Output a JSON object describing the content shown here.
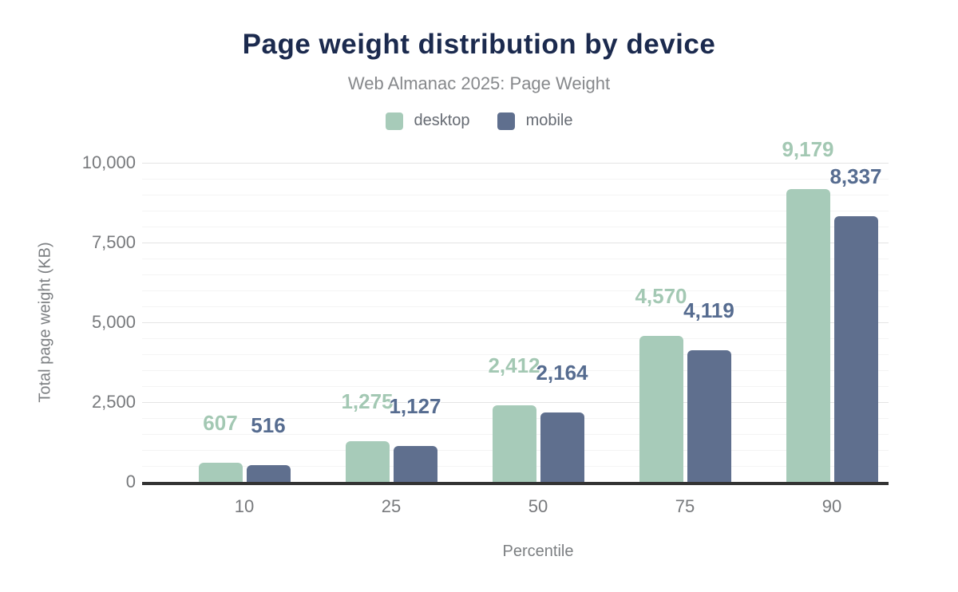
{
  "header": {
    "title": "Page weight distribution by device",
    "subtitle": "Web Almanac 2025: Page Weight"
  },
  "colors": {
    "title": "#1b2a4e",
    "desktop": "#a7cbb9",
    "mobile": "#5f6f8e",
    "desktop_label": "#a3c8b3",
    "mobile_label": "#566c90",
    "axis_line": "#333333"
  },
  "chart_data": {
    "type": "bar",
    "title": "Page weight distribution by device",
    "subtitle": "Web Almanac 2025: Page Weight",
    "xlabel": "Percentile",
    "ylabel": "Total page weight (KB)",
    "categories": [
      "10",
      "25",
      "50",
      "75",
      "90"
    ],
    "series": [
      {
        "name": "desktop",
        "color": "#a7cbb9",
        "label_color": "#a3c8b3",
        "values": [
          607,
          1275,
          2412,
          4570,
          9179
        ],
        "labels": [
          "607",
          "1,275",
          "2,412",
          "4,570",
          "9,179"
        ]
      },
      {
        "name": "mobile",
        "color": "#5f6f8e",
        "label_color": "#566c90",
        "values": [
          516,
          1127,
          2164,
          4119,
          8337
        ],
        "labels": [
          "516",
          "1,127",
          "2,164",
          "4,119",
          "8,337"
        ]
      }
    ],
    "ylim": [
      0,
      10000
    ],
    "yticks": [
      {
        "value": 0,
        "label": "0"
      },
      {
        "value": 2500,
        "label": "2,500"
      },
      {
        "value": 5000,
        "label": "5,000"
      },
      {
        "value": 7500,
        "label": "7,500"
      },
      {
        "value": 10000,
        "label": "10,000"
      }
    ],
    "minor_tick_step": 500,
    "grid": true,
    "legend_position": "top"
  }
}
